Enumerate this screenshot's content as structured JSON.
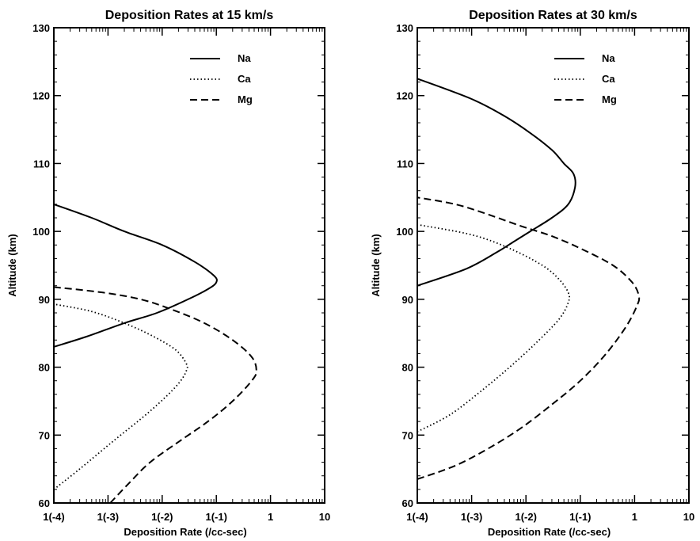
{
  "chart_data": [
    {
      "type": "line",
      "title": "Deposition Rates at 15 km/s",
      "xlabel": "Deposition Rate (/cc-sec)",
      "ylabel": "Altitude (km)",
      "x_scale": "log",
      "xlim": [
        0.0001,
        10
      ],
      "ylim": [
        60,
        130
      ],
      "x_ticks": [
        {
          "value": 0.0001,
          "label": "1(-4)"
        },
        {
          "value": 0.001,
          "label": "1(-3)"
        },
        {
          "value": 0.01,
          "label": "1(-2)"
        },
        {
          "value": 0.1,
          "label": "1(-1)"
        },
        {
          "value": 1,
          "label": "1"
        },
        {
          "value": 10,
          "label": "10"
        }
      ],
      "y_ticks": [
        60,
        70,
        80,
        90,
        100,
        110,
        120,
        130
      ],
      "legend_position": "top-right",
      "series": [
        {
          "name": "Na",
          "style": "solid",
          "points": [
            [
              0.0001,
              83
            ],
            [
              0.0004,
              84.5
            ],
            [
              0.002,
              86.5
            ],
            [
              0.008,
              88
            ],
            [
              0.03,
              90
            ],
            [
              0.07,
              91.5
            ],
            [
              0.1,
              92.5
            ],
            [
              0.09,
              93.5
            ],
            [
              0.04,
              95.5
            ],
            [
              0.01,
              98
            ],
            [
              0.002,
              100
            ],
            [
              0.0005,
              102
            ],
            [
              0.0001,
              104
            ]
          ]
        },
        {
          "name": "Ca",
          "style": "dotted",
          "points": [
            [
              0.0001,
              62
            ],
            [
              0.0003,
              65
            ],
            [
              0.0012,
              69
            ],
            [
              0.005,
              73
            ],
            [
              0.013,
              76
            ],
            [
              0.022,
              78
            ],
            [
              0.028,
              79.5
            ],
            [
              0.028,
              80.5
            ],
            [
              0.018,
              82.5
            ],
            [
              0.007,
              84.5
            ],
            [
              0.002,
              86.5
            ],
            [
              0.0005,
              88.2
            ],
            [
              0.0001,
              89.3
            ]
          ]
        },
        {
          "name": "Mg",
          "style": "dashed",
          "points": [
            [
              0.0011,
              60
            ],
            [
              0.0025,
              63
            ],
            [
              0.006,
              66
            ],
            [
              0.02,
              69
            ],
            [
              0.07,
              72
            ],
            [
              0.2,
              75
            ],
            [
              0.45,
              78
            ],
            [
              0.55,
              79.5
            ],
            [
              0.45,
              81.5
            ],
            [
              0.2,
              84
            ],
            [
              0.06,
              86.5
            ],
            [
              0.015,
              88.5
            ],
            [
              0.004,
              90
            ],
            [
              0.0008,
              91
            ],
            [
              0.0001,
              91.8
            ]
          ]
        }
      ]
    },
    {
      "type": "line",
      "title": "Deposition Rates at 30 km/s",
      "xlabel": "Deposition Rate (/cc-sec)",
      "ylabel": "Altitude (km)",
      "x_scale": "log",
      "xlim": [
        0.0001,
        10
      ],
      "ylim": [
        60,
        130
      ],
      "x_ticks": [
        {
          "value": 0.0001,
          "label": "1(-4)"
        },
        {
          "value": 0.001,
          "label": "1(-3)"
        },
        {
          "value": 0.01,
          "label": "1(-2)"
        },
        {
          "value": 0.1,
          "label": "1(-1)"
        },
        {
          "value": 1,
          "label": "1"
        },
        {
          "value": 10,
          "label": "10"
        }
      ],
      "y_ticks": [
        60,
        70,
        80,
        90,
        100,
        110,
        120,
        130
      ],
      "legend_position": "top-right",
      "series": [
        {
          "name": "Na",
          "style": "solid",
          "points": [
            [
              0.0001,
              92
            ],
            [
              0.0008,
              94.5
            ],
            [
              0.003,
              97
            ],
            [
              0.006,
              98.5
            ],
            [
              0.012,
              100
            ],
            [
              0.03,
              102
            ],
            [
              0.06,
              104
            ],
            [
              0.08,
              106.5
            ],
            [
              0.075,
              108.5
            ],
            [
              0.05,
              110
            ],
            [
              0.03,
              112
            ],
            [
              0.012,
              114.5
            ],
            [
              0.004,
              117
            ],
            [
              0.001,
              119.5
            ],
            [
              0.0001,
              122.5
            ]
          ]
        },
        {
          "name": "Ca",
          "style": "dotted",
          "points": [
            [
              0.0001,
              70.5
            ],
            [
              0.0004,
              73
            ],
            [
              0.0015,
              76.5
            ],
            [
              0.005,
              80
            ],
            [
              0.015,
              83.5
            ],
            [
              0.04,
              87
            ],
            [
              0.06,
              89.5
            ],
            [
              0.06,
              91
            ],
            [
              0.04,
              93
            ],
            [
              0.02,
              95
            ],
            [
              0.005,
              97.5
            ],
            [
              0.001,
              99.5
            ],
            [
              0.0001,
              101
            ]
          ]
        },
        {
          "name": "Mg",
          "style": "dashed",
          "points": [
            [
              0.0001,
              63.5
            ],
            [
              0.0005,
              65.5
            ],
            [
              0.002,
              68
            ],
            [
              0.008,
              71
            ],
            [
              0.03,
              74.5
            ],
            [
              0.1,
              78
            ],
            [
              0.3,
              82
            ],
            [
              0.7,
              86
            ],
            [
              1.1,
              89
            ],
            [
              1.2,
              90.5
            ],
            [
              0.9,
              92.5
            ],
            [
              0.4,
              95
            ],
            [
              0.1,
              97.5
            ],
            [
              0.03,
              99.3
            ],
            [
              0.008,
              100.8
            ],
            [
              0.002,
              102.5
            ],
            [
              0.0005,
              104
            ],
            [
              0.0001,
              105
            ]
          ]
        }
      ]
    }
  ]
}
